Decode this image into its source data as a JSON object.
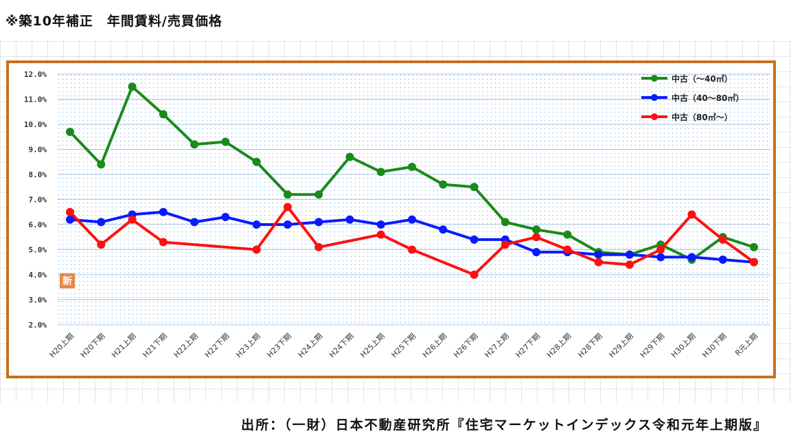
{
  "page": {
    "title": "※築10年補正　年間賃料/売買価格",
    "source": "出所：（一財）日本不動産研究所『住宅マーケットインデックス令和元年上期版』",
    "badge": "新"
  },
  "colors": {
    "frame": "#c8701e",
    "series": [
      "#1a8a1a",
      "#0a1aff",
      "#ff1010"
    ]
  },
  "chart_data": {
    "type": "line",
    "title": "",
    "xlabel": "",
    "ylabel": "",
    "categories": [
      "H20上期",
      "H20下期",
      "H21上期",
      "H21下期",
      "H22上期",
      "H22下期",
      "H23上期",
      "H23下期",
      "H24上期",
      "H24下期",
      "H25上期",
      "H25下期",
      "H26上期",
      "H26下期",
      "H27上期",
      "H27下期",
      "H28上期",
      "H28下期",
      "H29上期",
      "H29下期",
      "H30上期",
      "H30下期",
      "R元上期"
    ],
    "y_ticks": [
      "2.0%",
      "3.0%",
      "4.0%",
      "5.0%",
      "6.0%",
      "7.0%",
      "8.0%",
      "9.0%",
      "10.0%",
      "11.0%",
      "12.0%"
    ],
    "ylim": [
      2.0,
      12.0
    ],
    "grid": true,
    "legend_position": "top-right",
    "series": [
      {
        "name": "中古（～40㎡）",
        "color": "#1a8a1a",
        "values": [
          9.7,
          8.4,
          11.5,
          10.4,
          9.2,
          9.3,
          8.5,
          7.2,
          7.2,
          8.7,
          8.1,
          8.3,
          7.6,
          7.5,
          6.1,
          5.8,
          5.6,
          4.9,
          4.8,
          5.2,
          4.6,
          5.5,
          5.1
        ]
      },
      {
        "name": "中古（40～80㎡）",
        "color": "#0a1aff",
        "values": [
          6.2,
          6.1,
          6.4,
          6.5,
          6.1,
          6.3,
          6.0,
          6.0,
          6.1,
          6.2,
          6.0,
          6.2,
          5.8,
          5.4,
          5.4,
          4.9,
          4.9,
          4.8,
          4.8,
          4.7,
          4.7,
          4.6,
          4.5
        ]
      },
      {
        "name": "中古（80㎡～）",
        "color": "#ff1010",
        "values": [
          6.5,
          5.2,
          6.2,
          5.3,
          null,
          null,
          5.0,
          6.7,
          5.1,
          null,
          5.6,
          5.0,
          null,
          4.0,
          5.2,
          5.5,
          5.0,
          4.5,
          4.4,
          5.0,
          6.4,
          5.4,
          4.5
        ]
      }
    ]
  }
}
